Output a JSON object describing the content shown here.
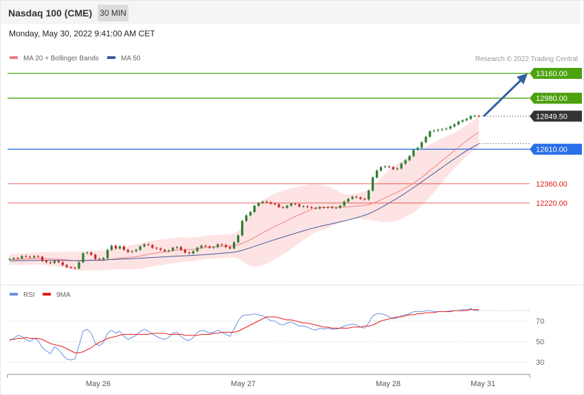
{
  "header": {
    "title": "Nasdaq 100 (CME)",
    "timeframe": "30 MIN",
    "datetime": "Monday, May 30, 2022 9:41:00 AM CET"
  },
  "legend": {
    "ma20": "MA 20 + Bollinger Bands",
    "ma50": "MA 50",
    "credit": "Research © 2022 Trading Central"
  },
  "rsi_legend": {
    "rsi": "RSI",
    "ma9": "9MA"
  },
  "colors": {
    "resistance": "#4ca10e",
    "current": "#333333",
    "pivot": "#2a6ee8",
    "support": "#e31b1b",
    "bull_candle": "#2e7d32",
    "bear_candle": "#c62828",
    "band_fill": "#fde3e3",
    "ma20": "#f08080",
    "ma50": "#3d5a99",
    "rsi": "#6b8fe0",
    "rsi_ma": "#e31b1b",
    "arrow": "#2f5f9f"
  },
  "chart_data": [
    {
      "type": "candlestick",
      "title": "Nasdaq 100 (CME)",
      "interval": "30 MIN",
      "xlabel": "",
      "ylabel": "",
      "x_ticks": [
        "May 26",
        "May 27",
        "May 28",
        "May 31"
      ],
      "levels": [
        {
          "name": "resistance-2",
          "value": 13160.0,
          "label": "13160.00",
          "kind": "resistance"
        },
        {
          "name": "resistance-1",
          "value": 12980.0,
          "label": "12980.00",
          "kind": "resistance"
        },
        {
          "name": "current-price",
          "value": 12849.5,
          "label": "12849.50",
          "kind": "current"
        },
        {
          "name": "pivot",
          "value": 12610.0,
          "label": "12610.00",
          "kind": "pivot"
        },
        {
          "name": "support-1",
          "value": 12360.0,
          "label": "12360.00",
          "kind": "support"
        },
        {
          "name": "support-2",
          "value": 12220.0,
          "label": "12220.00",
          "kind": "support"
        }
      ],
      "close": [
        11814,
        11820,
        11818,
        11835,
        11830,
        11825,
        11834,
        11830,
        11800,
        11790,
        11785,
        11800,
        11790,
        11770,
        11755,
        11750,
        11745,
        11790,
        11855,
        11860,
        11845,
        11815,
        11810,
        11820,
        11880,
        11910,
        11890,
        11905,
        11880,
        11865,
        11870,
        11880,
        11905,
        11920,
        11915,
        11895,
        11890,
        11880,
        11870,
        11875,
        11895,
        11900,
        11880,
        11860,
        11855,
        11870,
        11895,
        11910,
        11905,
        11895,
        11900,
        11920,
        11915,
        11900,
        11890,
        11935,
        11985,
        12090,
        12130,
        12155,
        12200,
        12220,
        12230,
        12225,
        12215,
        12210,
        12190,
        12185,
        12200,
        12215,
        12210,
        12195,
        12195,
        12190,
        12185,
        12180,
        12190,
        12185,
        12190,
        12185,
        12185,
        12200,
        12230,
        12250,
        12265,
        12260,
        12250,
        12245,
        12310,
        12405,
        12455,
        12480,
        12485,
        12480,
        12465,
        12470,
        12505,
        12530,
        12560,
        12605,
        12620,
        12660,
        12700,
        12740,
        12745,
        12750,
        12755,
        12760,
        12775,
        12790,
        12810,
        12820,
        12830,
        12850,
        12852,
        12849
      ],
      "ma20": [
        11810,
        11811,
        11811,
        11813,
        11814,
        11815,
        11817,
        11818,
        11818,
        11816,
        11814,
        11813,
        11812,
        11810,
        11807,
        11804,
        11801,
        11799,
        11800,
        11802,
        11803,
        11803,
        11803,
        11803,
        11807,
        11812,
        11815,
        11819,
        11822,
        11824,
        11827,
        11830,
        11835,
        11841,
        11848,
        11853,
        11858,
        11862,
        11865,
        11870,
        11874,
        11879,
        11881,
        11881,
        11882,
        11884,
        11888,
        11893,
        11897,
        11900,
        11902,
        11904,
        11906,
        11907,
        11908,
        11911,
        11916,
        11927,
        11940,
        11954,
        11970,
        11986,
        12003,
        12019,
        12035,
        12050,
        12064,
        12078,
        12092,
        12107,
        12122,
        12135,
        12148,
        12162,
        12174,
        12182,
        12186,
        12188,
        12189,
        12191,
        12190,
        12189,
        12190,
        12192,
        12195,
        12197,
        12200,
        12203,
        12208,
        12218,
        12230,
        12243,
        12257,
        12271,
        12284,
        12298,
        12313,
        12329,
        12346,
        12364,
        12383,
        12406,
        12430,
        12455,
        12479,
        12503,
        12528,
        12552,
        12576,
        12600,
        12623,
        12648,
        12672,
        12694,
        12715,
        12735
      ],
      "ma50": [
        11800,
        11801,
        11801,
        11802,
        11802,
        11803,
        11803,
        11804,
        11804,
        11804,
        11804,
        11804,
        11804,
        11803,
        11803,
        11802,
        11802,
        11802,
        11803,
        11804,
        11805,
        11805,
        11806,
        11806,
        11808,
        11810,
        11811,
        11813,
        11814,
        11815,
        11816,
        11818,
        11819,
        11821,
        11823,
        11825,
        11826,
        11828,
        11829,
        11831,
        11833,
        11835,
        11836,
        11837,
        11838,
        11840,
        11842,
        11844,
        11846,
        11848,
        11850,
        11853,
        11856,
        11858,
        11860,
        11864,
        11869,
        11877,
        11886,
        11895,
        11905,
        11915,
        11925,
        11935,
        11945,
        11955,
        11964,
        11973,
        11982,
        11991,
        12000,
        12009,
        12018,
        12027,
        12035,
        12043,
        12050,
        12057,
        12063,
        12070,
        12076,
        12083,
        12090,
        12097,
        12105,
        12113,
        12122,
        12131,
        12142,
        12155,
        12170,
        12186,
        12203,
        12220,
        12237,
        12255,
        12273,
        12292,
        12312,
        12332,
        12352,
        12373,
        12394,
        12415,
        12436,
        12457,
        12478,
        12499,
        12520,
        12540,
        12560,
        12580,
        12599,
        12617,
        12634,
        12650
      ],
      "band_width": [
        40,
        40,
        42,
        42,
        43,
        43,
        44,
        44,
        46,
        48,
        50,
        52,
        54,
        57,
        60,
        63,
        66,
        68,
        70,
        72,
        72,
        72,
        72,
        72,
        73,
        75,
        77,
        80,
        83,
        86,
        88,
        90,
        92,
        93,
        93,
        93,
        93,
        93,
        92,
        92,
        91,
        90,
        89,
        88,
        87,
        86,
        85,
        84,
        84,
        84,
        84,
        84,
        84,
        84,
        84,
        88,
        100,
        130,
        160,
        190,
        210,
        225,
        235,
        240,
        240,
        238,
        235,
        230,
        225,
        220,
        212,
        205,
        198,
        190,
        182,
        175,
        168,
        160,
        150,
        138,
        125,
        110,
        95,
        90,
        90,
        92,
        95,
        100,
        110,
        125,
        140,
        160,
        175,
        190,
        200,
        205,
        208,
        210,
        212,
        212,
        210,
        205,
        198,
        190,
        180,
        170,
        160,
        150,
        140,
        130,
        122,
        116,
        112,
        110,
        110,
        110
      ]
    },
    {
      "type": "line",
      "title": "",
      "xlabel": "",
      "ylabel": "",
      "ylim": [
        20,
        85
      ],
      "y_ticks": [
        70,
        50,
        30
      ],
      "series": [
        {
          "name": "RSI",
          "values": [
            51,
            53,
            56,
            55,
            52,
            50,
            53,
            51,
            44,
            41,
            38,
            45,
            42,
            37,
            33,
            32,
            33,
            46,
            60,
            62,
            58,
            48,
            46,
            49,
            58,
            61,
            58,
            60,
            55,
            52,
            54,
            56,
            60,
            62,
            60,
            57,
            55,
            53,
            52,
            54,
            58,
            59,
            55,
            52,
            51,
            54,
            59,
            61,
            60,
            58,
            59,
            61,
            59,
            57,
            55,
            62,
            70,
            75,
            76,
            76,
            77,
            76,
            75,
            73,
            70,
            70,
            67,
            66,
            68,
            69,
            67,
            65,
            65,
            64,
            62,
            61,
            63,
            62,
            63,
            62,
            62,
            63,
            65,
            66,
            67,
            66,
            64,
            63,
            68,
            75,
            77,
            77,
            76,
            74,
            72,
            73,
            75,
            76,
            77,
            79,
            79,
            79,
            80,
            80,
            79,
            79,
            79,
            79,
            80,
            80,
            80,
            81,
            81,
            82,
            80,
            80
          ]
        },
        {
          "name": "9MA",
          "values": [
            52,
            52,
            53,
            53,
            54,
            53,
            53,
            53,
            52,
            50,
            48,
            47,
            46,
            45,
            43,
            41,
            39,
            39,
            40,
            42,
            44,
            47,
            49,
            51,
            53,
            54,
            55,
            56,
            57,
            57,
            57,
            57,
            57,
            57,
            57,
            58,
            58,
            58,
            58,
            57,
            57,
            57,
            57,
            56,
            56,
            56,
            56,
            57,
            57,
            57,
            58,
            58,
            59,
            59,
            59,
            59,
            60,
            62,
            64,
            66,
            68,
            70,
            72,
            74,
            74,
            74,
            73,
            72,
            71,
            71,
            70,
            69,
            68,
            68,
            67,
            66,
            65,
            64,
            64,
            63,
            63,
            63,
            63,
            63,
            64,
            64,
            64,
            65,
            65,
            66,
            68,
            70,
            71,
            72,
            73,
            74,
            74,
            75,
            76,
            76,
            77,
            77,
            78,
            78,
            78,
            79,
            79,
            79,
            79,
            80,
            80,
            80,
            80,
            81,
            81,
            81
          ]
        }
      ]
    }
  ]
}
